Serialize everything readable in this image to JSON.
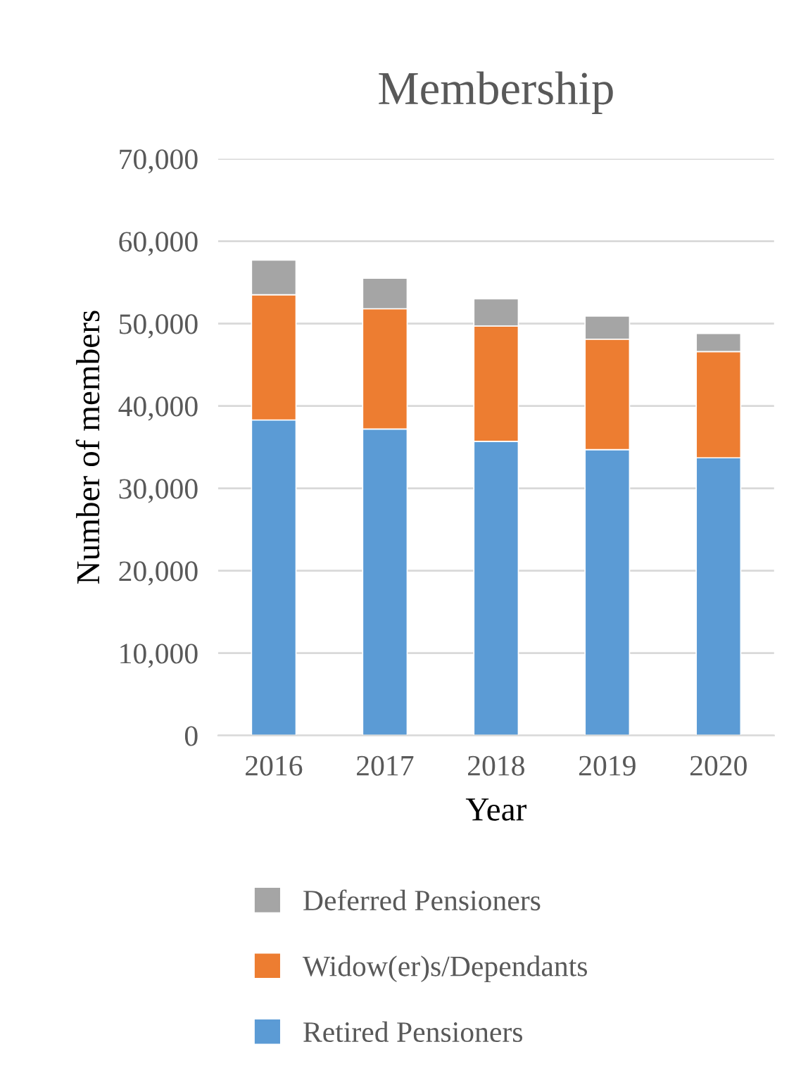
{
  "chart_data": {
    "type": "bar",
    "title": "Membership",
    "xlabel": "Year",
    "ylabel": "Number of members",
    "categories": [
      "2016",
      "2017",
      "2018",
      "2019",
      "2020"
    ],
    "stacked": true,
    "series": [
      {
        "name": "Retired Pensioners",
        "color": "#5b9bd5",
        "values": [
          38300,
          37200,
          35700,
          34700,
          33700
        ]
      },
      {
        "name": "Widow(er)s/Dependants",
        "color": "#ed7d31",
        "values": [
          15200,
          14600,
          14000,
          13400,
          12900
        ]
      },
      {
        "name": "Deferred Pensioners",
        "color": "#a5a5a5",
        "values": [
          4200,
          3700,
          3300,
          2800,
          2200
        ]
      }
    ],
    "ylim": [
      0,
      70000
    ],
    "yticks": [
      0,
      {
        "value": 10000,
        "label": "10,000"
      },
      {
        "value": 20000,
        "label": "20,000"
      },
      {
        "value": 30000,
        "label": "30,000"
      },
      {
        "value": 40000,
        "label": "40,000"
      },
      {
        "value": 50000,
        "label": "50,000"
      },
      {
        "value": 60000,
        "label": "60,000"
      },
      {
        "value": 70000,
        "label": "70,000"
      }
    ],
    "grid": "y",
    "legend": "bottom"
  }
}
